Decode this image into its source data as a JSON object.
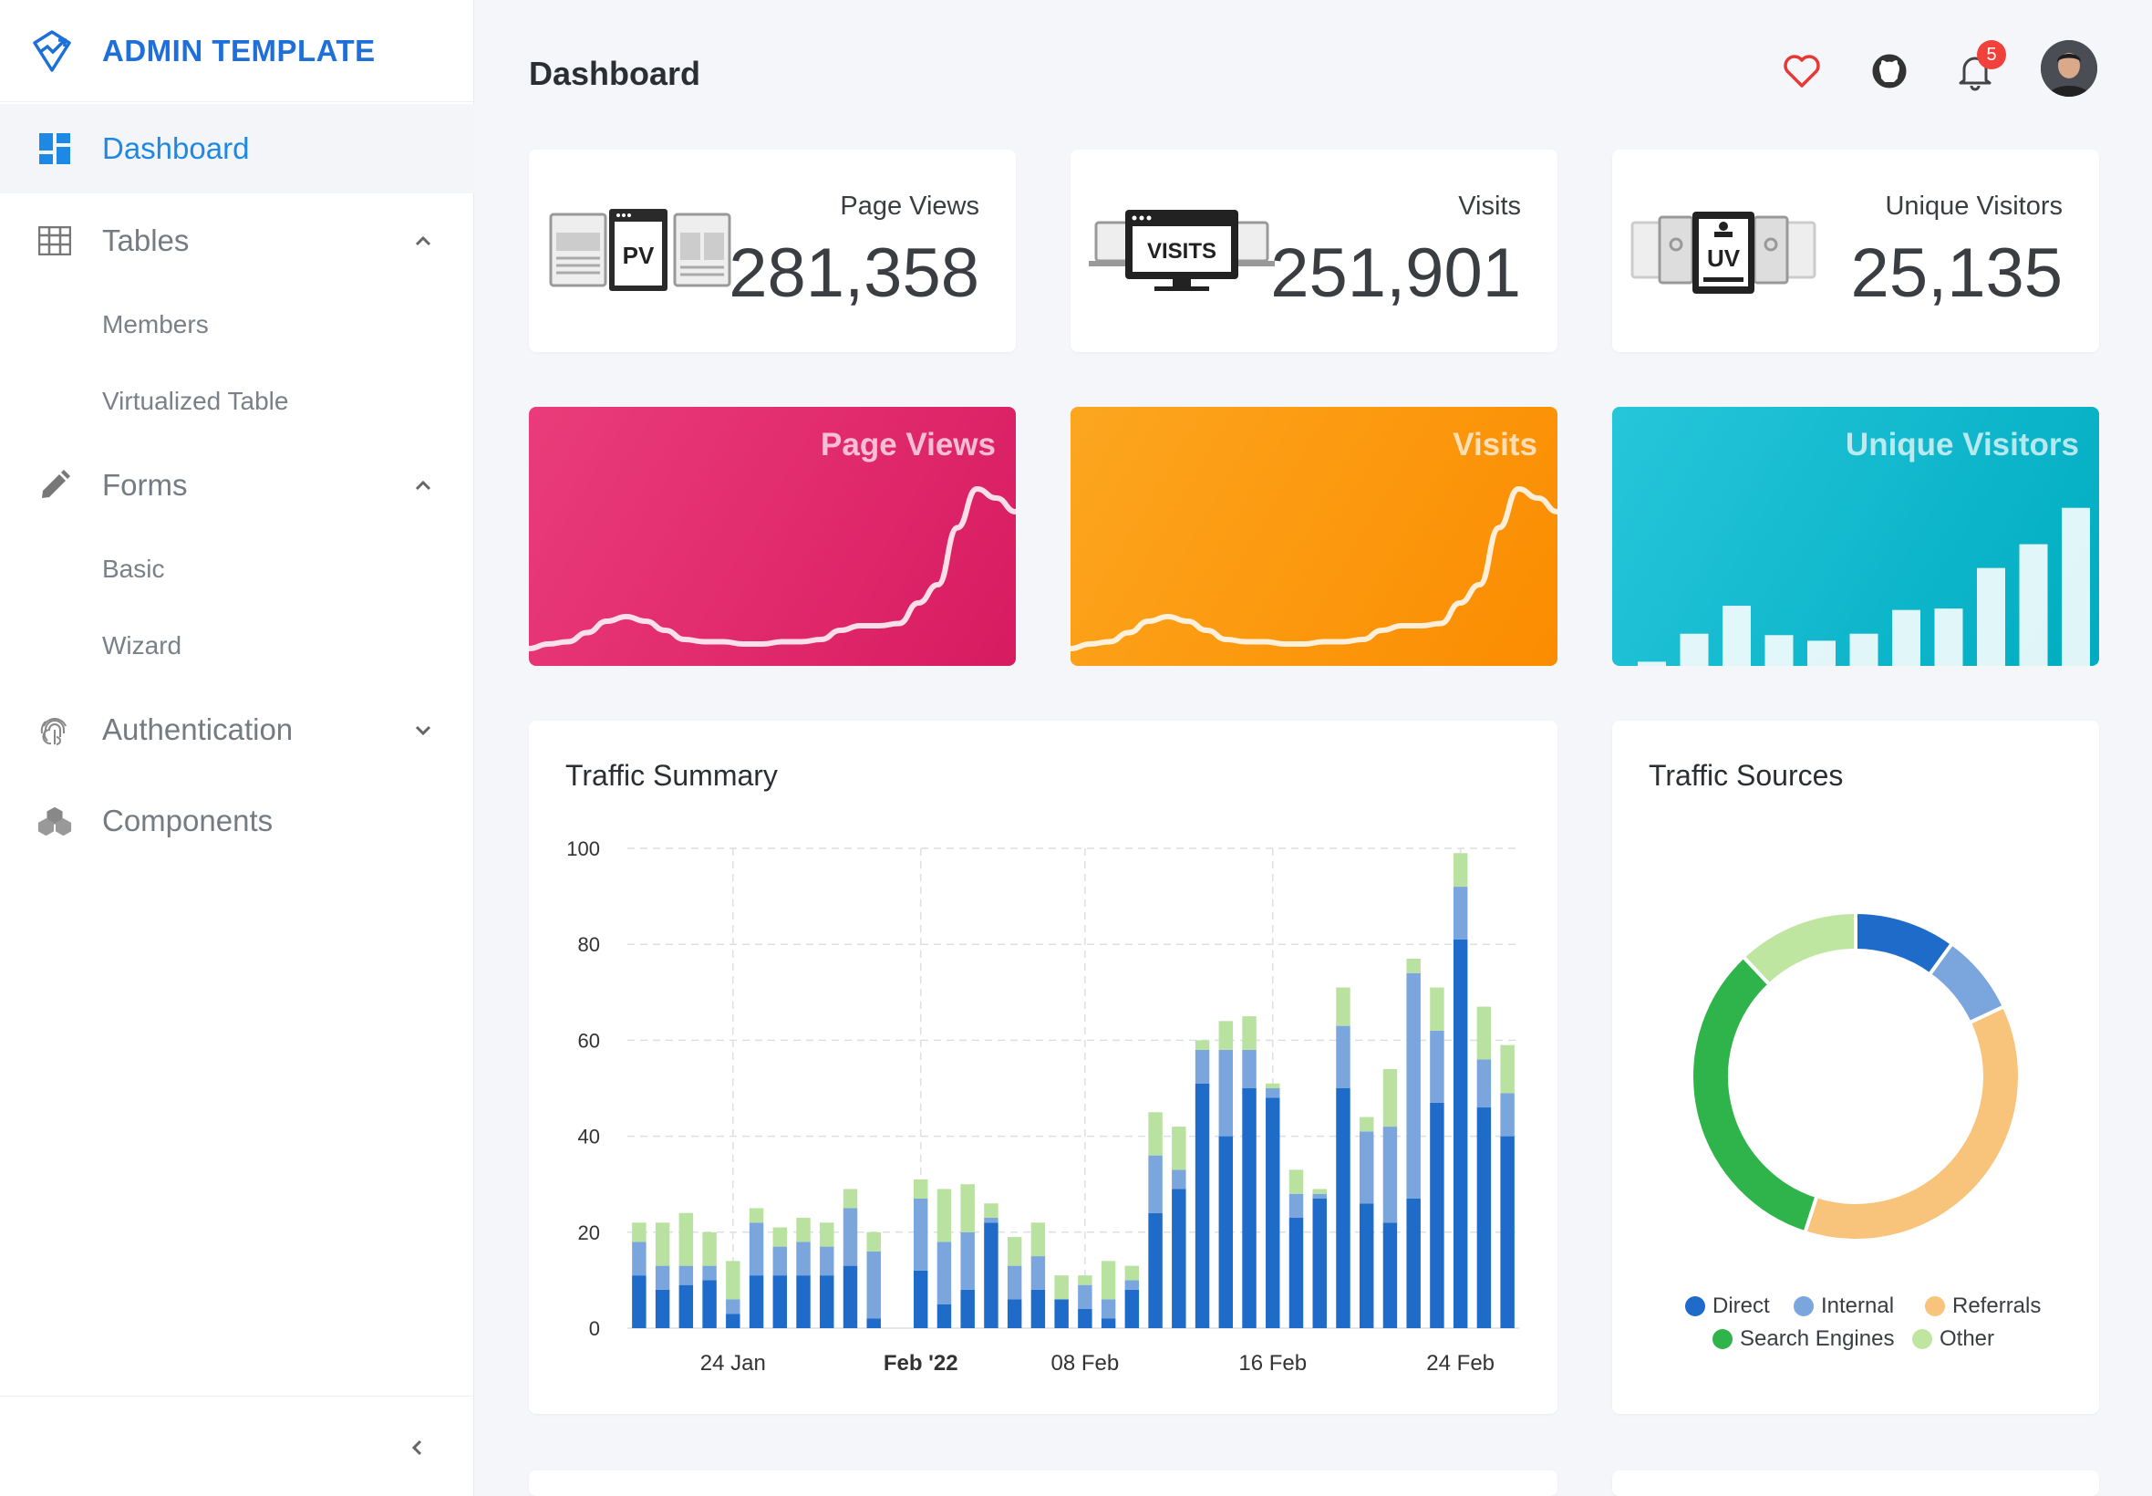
{
  "brand": {
    "name": "ADMIN TEMPLATE"
  },
  "sidebar": {
    "items": [
      {
        "label": "Dashboard",
        "icon": "dashboard-icon"
      },
      {
        "label": "Tables",
        "icon": "table-icon"
      },
      {
        "label": "Forms",
        "icon": "pencil-icon"
      },
      {
        "label": "Authentication",
        "icon": "fingerprint-icon"
      },
      {
        "label": "Components",
        "icon": "cubes-icon"
      }
    ],
    "tables_sub": [
      "Members",
      "Virtualized Table"
    ],
    "forms_sub": [
      "Basic",
      "Wizard"
    ]
  },
  "header": {
    "title": "Dashboard",
    "notification_count": "5"
  },
  "stats": [
    {
      "label": "Page Views",
      "value": "281,358",
      "illustration_text": "PV"
    },
    {
      "label": "Visits",
      "value": "251,901",
      "illustration_text": "VISITS"
    },
    {
      "label": "Unique Visitors",
      "value": "25,135",
      "illustration_text": "UV"
    }
  ],
  "color_cards": [
    {
      "title": "Page Views",
      "color_from": "#ea3c7a",
      "color_to": "#d81b60"
    },
    {
      "title": "Visits",
      "color_from": "#fca61f",
      "color_to": "#fb8c00"
    },
    {
      "title": "Unique Visitors",
      "color_from": "#26c6da",
      "color_to": "#00acc1"
    }
  ],
  "traffic_summary": {
    "title": "Traffic Summary"
  },
  "traffic_sources": {
    "title": "Traffic Sources"
  },
  "chart_data": [
    {
      "type": "line",
      "title": "Page Views",
      "values": [
        2,
        4,
        5,
        9,
        14,
        16,
        14,
        10,
        6,
        5,
        5,
        4,
        4,
        5,
        5,
        6,
        10,
        12,
        12,
        13,
        22,
        30,
        55,
        72,
        68,
        62
      ]
    },
    {
      "type": "line",
      "title": "Visits",
      "values": [
        2,
        4,
        5,
        9,
        14,
        16,
        14,
        10,
        6,
        5,
        5,
        4,
        4,
        5,
        5,
        6,
        10,
        12,
        12,
        13,
        22,
        30,
        55,
        72,
        68,
        62
      ]
    },
    {
      "type": "bar",
      "title": "Unique Visitors",
      "values": [
        3,
        23,
        43,
        22,
        18,
        23,
        40,
        41,
        70,
        87,
        113
      ]
    },
    {
      "type": "bar",
      "stacked": true,
      "title": "Traffic Summary",
      "ylim": [
        0,
        100
      ],
      "yticks": [
        0,
        20,
        40,
        60,
        80,
        100
      ],
      "xticks": [
        {
          "label": "24 Jan",
          "index": 4,
          "bold": false
        },
        {
          "label": "Feb '22",
          "index": 12,
          "bold": true
        },
        {
          "label": "08 Feb",
          "index": 19,
          "bold": false
        },
        {
          "label": "16 Feb",
          "index": 27,
          "bold": false
        },
        {
          "label": "24 Feb",
          "index": 35,
          "bold": false
        }
      ],
      "colors": [
        "#1e6bc9",
        "#7aa6dd",
        "#b9e2a0"
      ],
      "series": [
        {
          "name": "Direct",
          "values": [
            11,
            8,
            9,
            10,
            3,
            11,
            11,
            11,
            11,
            13,
            2,
            0,
            12,
            5,
            8,
            22,
            6,
            8,
            6,
            4,
            2,
            8,
            24,
            29,
            51,
            40,
            50,
            48,
            23,
            27,
            50,
            26,
            22,
            27,
            47,
            81,
            46,
            40
          ]
        },
        {
          "name": "Internal",
          "values": [
            7,
            5,
            4,
            3,
            3,
            11,
            6,
            7,
            6,
            12,
            14,
            0,
            15,
            13,
            12,
            1,
            7,
            7,
            0,
            5,
            4,
            2,
            12,
            4,
            7,
            18,
            8,
            2,
            5,
            1,
            13,
            15,
            20,
            47,
            15,
            11,
            10,
            9
          ]
        },
        {
          "name": "Search Engines",
          "values": [
            4,
            9,
            11,
            7,
            8,
            3,
            4,
            5,
            5,
            4,
            4,
            0,
            4,
            11,
            10,
            3,
            6,
            7,
            5,
            2,
            8,
            3,
            9,
            9,
            2,
            6,
            7,
            1,
            5,
            1,
            8,
            3,
            12,
            3,
            9,
            7,
            11,
            10
          ]
        }
      ]
    },
    {
      "type": "pie",
      "title": "Traffic Sources",
      "categories": [
        "Direct",
        "Internal",
        "Referrals",
        "Search Engines",
        "Other"
      ],
      "values": [
        10,
        8,
        37,
        33,
        12
      ],
      "colors": [
        "#1e6bc9",
        "#7aa6dd",
        "#f8c37a",
        "#2fb34b",
        "#bfe6a0"
      ]
    }
  ]
}
